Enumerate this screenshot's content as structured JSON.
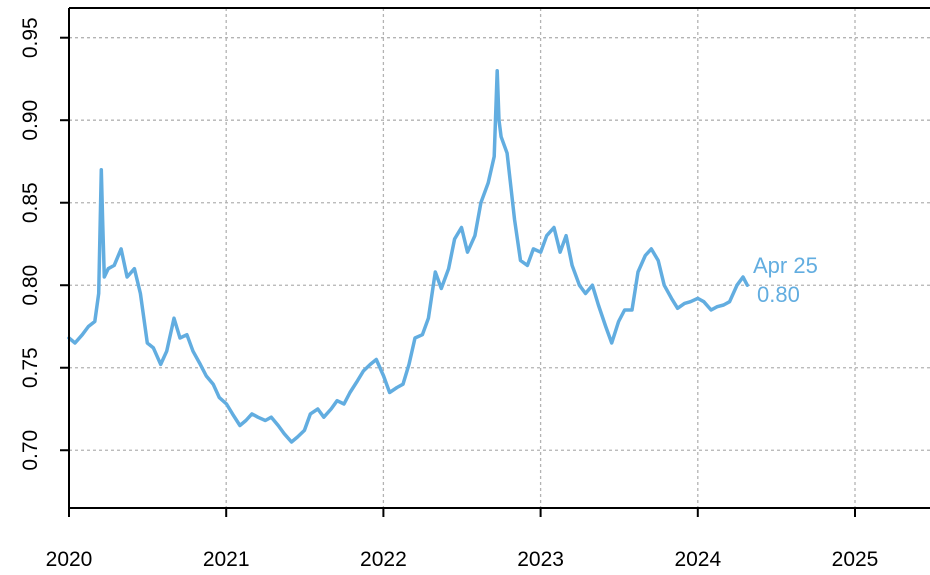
{
  "chart_data": {
    "type": "line",
    "title": "",
    "xlabel": "",
    "ylabel": "",
    "xlim": [
      "2020-01-01",
      "2025-06-01"
    ],
    "ylim": [
      0.665,
      0.968
    ],
    "grid": true,
    "line_color": "#62ADE0",
    "x_ticks": [
      "2020",
      "2021",
      "2022",
      "2023",
      "2024",
      "2025"
    ],
    "y_ticks": [
      "0.70",
      "0.75",
      "0.80",
      "0.85",
      "0.90",
      "0.95"
    ],
    "series": [
      {
        "x": [
          "2020-01-01",
          "2020-01-15",
          "2020-02-01",
          "2020-02-15",
          "2020-03-01",
          "2020-03-10",
          "2020-03-16",
          "2020-03-19",
          "2020-03-23",
          "2020-04-01",
          "2020-04-15",
          "2020-05-01",
          "2020-05-15",
          "2020-06-01",
          "2020-06-15",
          "2020-07-01",
          "2020-07-15",
          "2020-08-01",
          "2020-08-15",
          "2020-09-01",
          "2020-09-15",
          "2020-10-01",
          "2020-10-15",
          "2020-11-01",
          "2020-11-15",
          "2020-12-01",
          "2020-12-15",
          "2021-01-01",
          "2021-01-15",
          "2021-02-01",
          "2021-02-15",
          "2021-03-01",
          "2021-03-15",
          "2021-04-01",
          "2021-04-15",
          "2021-05-01",
          "2021-05-15",
          "2021-06-01",
          "2021-06-15",
          "2021-07-01",
          "2021-07-15",
          "2021-08-01",
          "2021-08-15",
          "2021-09-01",
          "2021-09-15",
          "2021-10-01",
          "2021-10-15",
          "2021-11-01",
          "2021-11-15",
          "2021-12-01",
          "2021-12-15",
          "2022-01-01",
          "2022-01-15",
          "2022-02-01",
          "2022-02-15",
          "2022-03-01",
          "2022-03-15",
          "2022-04-01",
          "2022-04-15",
          "2022-05-01",
          "2022-05-15",
          "2022-06-01",
          "2022-06-15",
          "2022-07-01",
          "2022-07-15",
          "2022-08-01",
          "2022-08-15",
          "2022-09-01",
          "2022-09-15",
          "2022-09-22",
          "2022-09-26",
          "2022-10-01",
          "2022-10-15",
          "2022-11-01",
          "2022-11-15",
          "2022-12-01",
          "2022-12-15",
          "2023-01-01",
          "2023-01-15",
          "2023-02-01",
          "2023-02-15",
          "2023-03-01",
          "2023-03-15",
          "2023-04-01",
          "2023-04-15",
          "2023-05-01",
          "2023-05-15",
          "2023-06-01",
          "2023-06-15",
          "2023-07-01",
          "2023-07-15",
          "2023-08-01",
          "2023-08-15",
          "2023-09-01",
          "2023-09-15",
          "2023-10-01",
          "2023-10-15",
          "2023-11-01",
          "2023-11-15",
          "2023-12-01",
          "2023-12-15",
          "2024-01-01",
          "2024-01-15",
          "2024-02-01",
          "2024-02-15",
          "2024-03-01",
          "2024-03-15",
          "2024-04-01",
          "2024-04-15",
          "2024-04-25"
        ],
        "values": [
          0.768,
          0.765,
          0.77,
          0.775,
          0.778,
          0.795,
          0.87,
          0.84,
          0.805,
          0.81,
          0.812,
          0.822,
          0.805,
          0.81,
          0.795,
          0.765,
          0.762,
          0.752,
          0.76,
          0.78,
          0.768,
          0.77,
          0.76,
          0.752,
          0.745,
          0.74,
          0.732,
          0.728,
          0.722,
          0.715,
          0.718,
          0.722,
          0.72,
          0.718,
          0.72,
          0.715,
          0.71,
          0.705,
          0.708,
          0.712,
          0.722,
          0.725,
          0.72,
          0.725,
          0.73,
          0.728,
          0.735,
          0.742,
          0.748,
          0.752,
          0.755,
          0.745,
          0.735,
          0.738,
          0.74,
          0.752,
          0.768,
          0.77,
          0.78,
          0.808,
          0.798,
          0.81,
          0.828,
          0.835,
          0.82,
          0.83,
          0.85,
          0.862,
          0.878,
          0.93,
          0.9,
          0.89,
          0.88,
          0.84,
          0.815,
          0.812,
          0.822,
          0.82,
          0.83,
          0.835,
          0.82,
          0.83,
          0.812,
          0.8,
          0.795,
          0.8,
          0.788,
          0.775,
          0.765,
          0.778,
          0.785,
          0.785,
          0.808,
          0.818,
          0.822,
          0.815,
          0.8,
          0.792,
          0.786,
          0.789,
          0.79,
          0.792,
          0.79,
          0.785,
          0.787,
          0.788,
          0.79,
          0.8,
          0.805,
          0.8
        ]
      }
    ],
    "annotation": {
      "date": "Apr 25",
      "value": "0.80"
    }
  }
}
